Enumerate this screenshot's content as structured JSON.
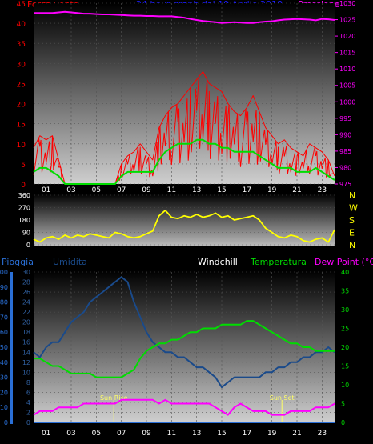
{
  "header": {
    "left": "Forza vento",
    "center": "24 hour graph dal   19 Aprile 2018",
    "right": "Pressione"
  },
  "colors": {
    "wind": "#ff0000",
    "gust": "#ff0000",
    "avg_wind": "#00dd00",
    "pressure": "#ff00ff",
    "direction": "#ffff00",
    "humidity": "#1a4a8a",
    "temperature": "#00dd00",
    "dewpoint": "#ff00ff",
    "rain": "#2a6fd6",
    "labels_left": "#ff0000",
    "labels_right": "#ff00ff"
  },
  "x_ticks": [
    "01",
    "03",
    "05",
    "07",
    "09",
    "11",
    "13",
    "15",
    "17",
    "19",
    "21",
    "23"
  ],
  "chart_data": [
    {
      "type": "line",
      "title": "24 hour graph dal   19 Aprile 2018",
      "ylabel_left": "Forza vento",
      "ylabel_right": "Pressione",
      "ylim_left": [
        0,
        45
      ],
      "yticks_left": [
        0,
        5,
        10,
        15,
        20,
        25,
        30,
        35,
        40,
        45
      ],
      "ylim_right": [
        975,
        1030
      ],
      "yticks_right": [
        975,
        980,
        985,
        990,
        995,
        1000,
        1005,
        1010,
        1015,
        1020,
        1025,
        1030
      ],
      "x_hours": [
        0,
        0.5,
        1,
        1.5,
        2,
        2.5,
        3,
        3.5,
        4,
        4.5,
        5,
        5.5,
        6,
        6.5,
        7,
        7.5,
        8,
        8.5,
        9,
        9.5,
        10,
        10.5,
        11,
        11.5,
        12,
        12.5,
        13,
        13.5,
        14,
        14.5,
        15,
        15.5,
        16,
        16.5,
        17,
        17.5,
        18,
        18.5,
        19,
        19.5,
        20,
        20.5,
        21,
        21.5,
        22,
        22.5,
        23,
        23.5,
        24
      ],
      "series": [
        {
          "values": [
            9,
            12,
            11,
            12,
            6,
            0,
            0,
            0,
            0,
            0,
            0,
            0,
            0,
            0,
            5,
            7,
            8,
            10,
            8,
            6,
            14,
            17,
            19,
            20,
            22,
            24,
            26,
            28,
            25,
            24,
            23,
            20,
            18,
            17,
            19,
            22,
            18,
            14,
            12,
            10,
            11,
            9,
            8,
            7,
            10,
            9,
            8,
            6,
            2
          ]
        },
        {
          "values": [
            3,
            4,
            4,
            3,
            2,
            0,
            0,
            0,
            0,
            0,
            0,
            0,
            0,
            0,
            2,
            3,
            3,
            3,
            3,
            3,
            6,
            8,
            9,
            10,
            10,
            10,
            11,
            11,
            10,
            10,
            9,
            9,
            8,
            8,
            8,
            8,
            7,
            6,
            5,
            4,
            4,
            4,
            3,
            3,
            3,
            4,
            3,
            2,
            1
          ]
        },
        {
          "values": [
            1027,
            1027,
            1027,
            1027,
            1027.2,
            1027.4,
            1027.2,
            1027,
            1026.8,
            1026.8,
            1026.7,
            1026.6,
            1026.6,
            1026.5,
            1026.4,
            1026.3,
            1026.2,
            1026.2,
            1026.1,
            1026.1,
            1026,
            1026,
            1026,
            1025.8,
            1025.6,
            1025.2,
            1024.9,
            1024.6,
            1024.4,
            1024.2,
            1024,
            1024.1,
            1024.2,
            1024.1,
            1024,
            1024,
            1024.2,
            1024.4,
            1024.5,
            1024.8,
            1025,
            1025.1,
            1025.2,
            1025.1,
            1025,
            1024.8,
            1025.2,
            1025.1,
            1024.9
          ]
        }
      ]
    },
    {
      "type": "line",
      "ylim": [
        0,
        360
      ],
      "yticks": [
        0,
        90,
        180,
        270,
        360
      ],
      "direction_labels": [
        "N",
        "W",
        "S",
        "E",
        "N"
      ],
      "x_hours": [
        0,
        0.5,
        1,
        1.5,
        2,
        2.5,
        3,
        3.5,
        4,
        4.5,
        5,
        5.5,
        6,
        6.5,
        7,
        7.5,
        8,
        8.5,
        9,
        9.5,
        10,
        10.5,
        11,
        11.5,
        12,
        12.5,
        13,
        13.5,
        14,
        14.5,
        15,
        15.5,
        16,
        16.5,
        17,
        17.5,
        18,
        18.5,
        19,
        19.5,
        20,
        20.5,
        21,
        21.5,
        22,
        22.5,
        23,
        23.5,
        24
      ],
      "series": [
        {
          "values": [
            40,
            20,
            50,
            60,
            40,
            70,
            50,
            70,
            60,
            80,
            70,
            60,
            50,
            90,
            80,
            60,
            50,
            60,
            80,
            100,
            210,
            250,
            200,
            190,
            210,
            200,
            220,
            200,
            210,
            230,
            200,
            210,
            180,
            190,
            200,
            210,
            180,
            120,
            90,
            60,
            50,
            70,
            60,
            30,
            20,
            40,
            50,
            20,
            110
          ]
        }
      ]
    },
    {
      "type": "line",
      "legend": [
        "Pioggia",
        "Umidita",
        "Windchill",
        "Temperatura",
        "Dew Point (°C)"
      ],
      "ylim_rain": [
        0,
        100
      ],
      "yticks_rain": [
        0,
        10,
        20,
        30,
        40,
        50,
        60,
        70,
        80,
        90,
        100
      ],
      "ylim_humidity": [
        0,
        30
      ],
      "yticks_humidity": [
        0,
        2,
        4,
        6,
        8,
        10,
        12,
        14,
        16,
        18,
        20,
        22,
        24,
        26,
        28,
        30
      ],
      "ylim_temp": [
        0,
        40
      ],
      "yticks_temp": [
        0,
        5,
        10,
        15,
        20,
        25,
        30,
        35,
        40
      ],
      "annotations": [
        {
          "text": "Sun Rise",
          "x": 6.4
        },
        {
          "text": "Sun Set",
          "x": 19.8
        }
      ],
      "x_hours": [
        0,
        0.5,
        1,
        1.5,
        2,
        2.5,
        3,
        3.5,
        4,
        4.5,
        5,
        5.5,
        6,
        6.5,
        7,
        7.5,
        8,
        8.5,
        9,
        9.5,
        10,
        10.5,
        11,
        11.5,
        12,
        12.5,
        13,
        13.5,
        14,
        14.5,
        15,
        15.5,
        16,
        16.5,
        17,
        17.5,
        18,
        18.5,
        19,
        19.5,
        20,
        20.5,
        21,
        21.5,
        22,
        22.5,
        23,
        23.5,
        24
      ],
      "series": [
        {
          "values": [
            14,
            13,
            15,
            16,
            16,
            18,
            20,
            21,
            22,
            24,
            25,
            26,
            27,
            28,
            29,
            28,
            24,
            21,
            18,
            16,
            15,
            14,
            14,
            13,
            13,
            12,
            11,
            11,
            10,
            9,
            7,
            8,
            9,
            9,
            9,
            9,
            9,
            10,
            10,
            11,
            11,
            12,
            12,
            13,
            13,
            14,
            14,
            15,
            14
          ]
        },
        {
          "values": [
            17,
            17,
            16,
            15,
            15,
            14,
            13,
            13,
            13,
            13,
            12,
            12,
            12,
            12,
            12,
            13,
            14,
            17,
            19,
            20,
            21,
            21,
            22,
            22,
            23,
            24,
            24,
            25,
            25,
            25,
            26,
            26,
            26,
            26,
            27,
            27,
            26,
            25,
            24,
            23,
            22,
            21,
            21,
            20,
            20,
            19,
            19,
            19,
            19
          ]
        },
        {
          "values": [
            2,
            3,
            3,
            3,
            4,
            4,
            4,
            4,
            5,
            5,
            5,
            5,
            5,
            5,
            6,
            6,
            6,
            6,
            6,
            6,
            5,
            6,
            5,
            5,
            5,
            5,
            5,
            5,
            5,
            4,
            3,
            2,
            4,
            5,
            4,
            3,
            3,
            3,
            2,
            2,
            2,
            3,
            3,
            3,
            3,
            4,
            4,
            4,
            5
          ]
        },
        {
          "values": [
            0,
            0,
            0,
            0,
            0,
            0,
            0,
            0,
            0,
            0,
            0,
            0,
            0,
            0,
            0,
            0,
            0,
            0,
            0,
            0,
            0,
            0,
            0,
            0,
            0,
            0,
            0,
            0,
            0,
            0,
            0,
            0,
            0,
            0,
            0,
            0,
            0,
            0,
            0,
            0,
            0,
            0,
            0,
            0,
            0,
            0,
            0,
            0,
            0
          ]
        }
      ]
    }
  ]
}
